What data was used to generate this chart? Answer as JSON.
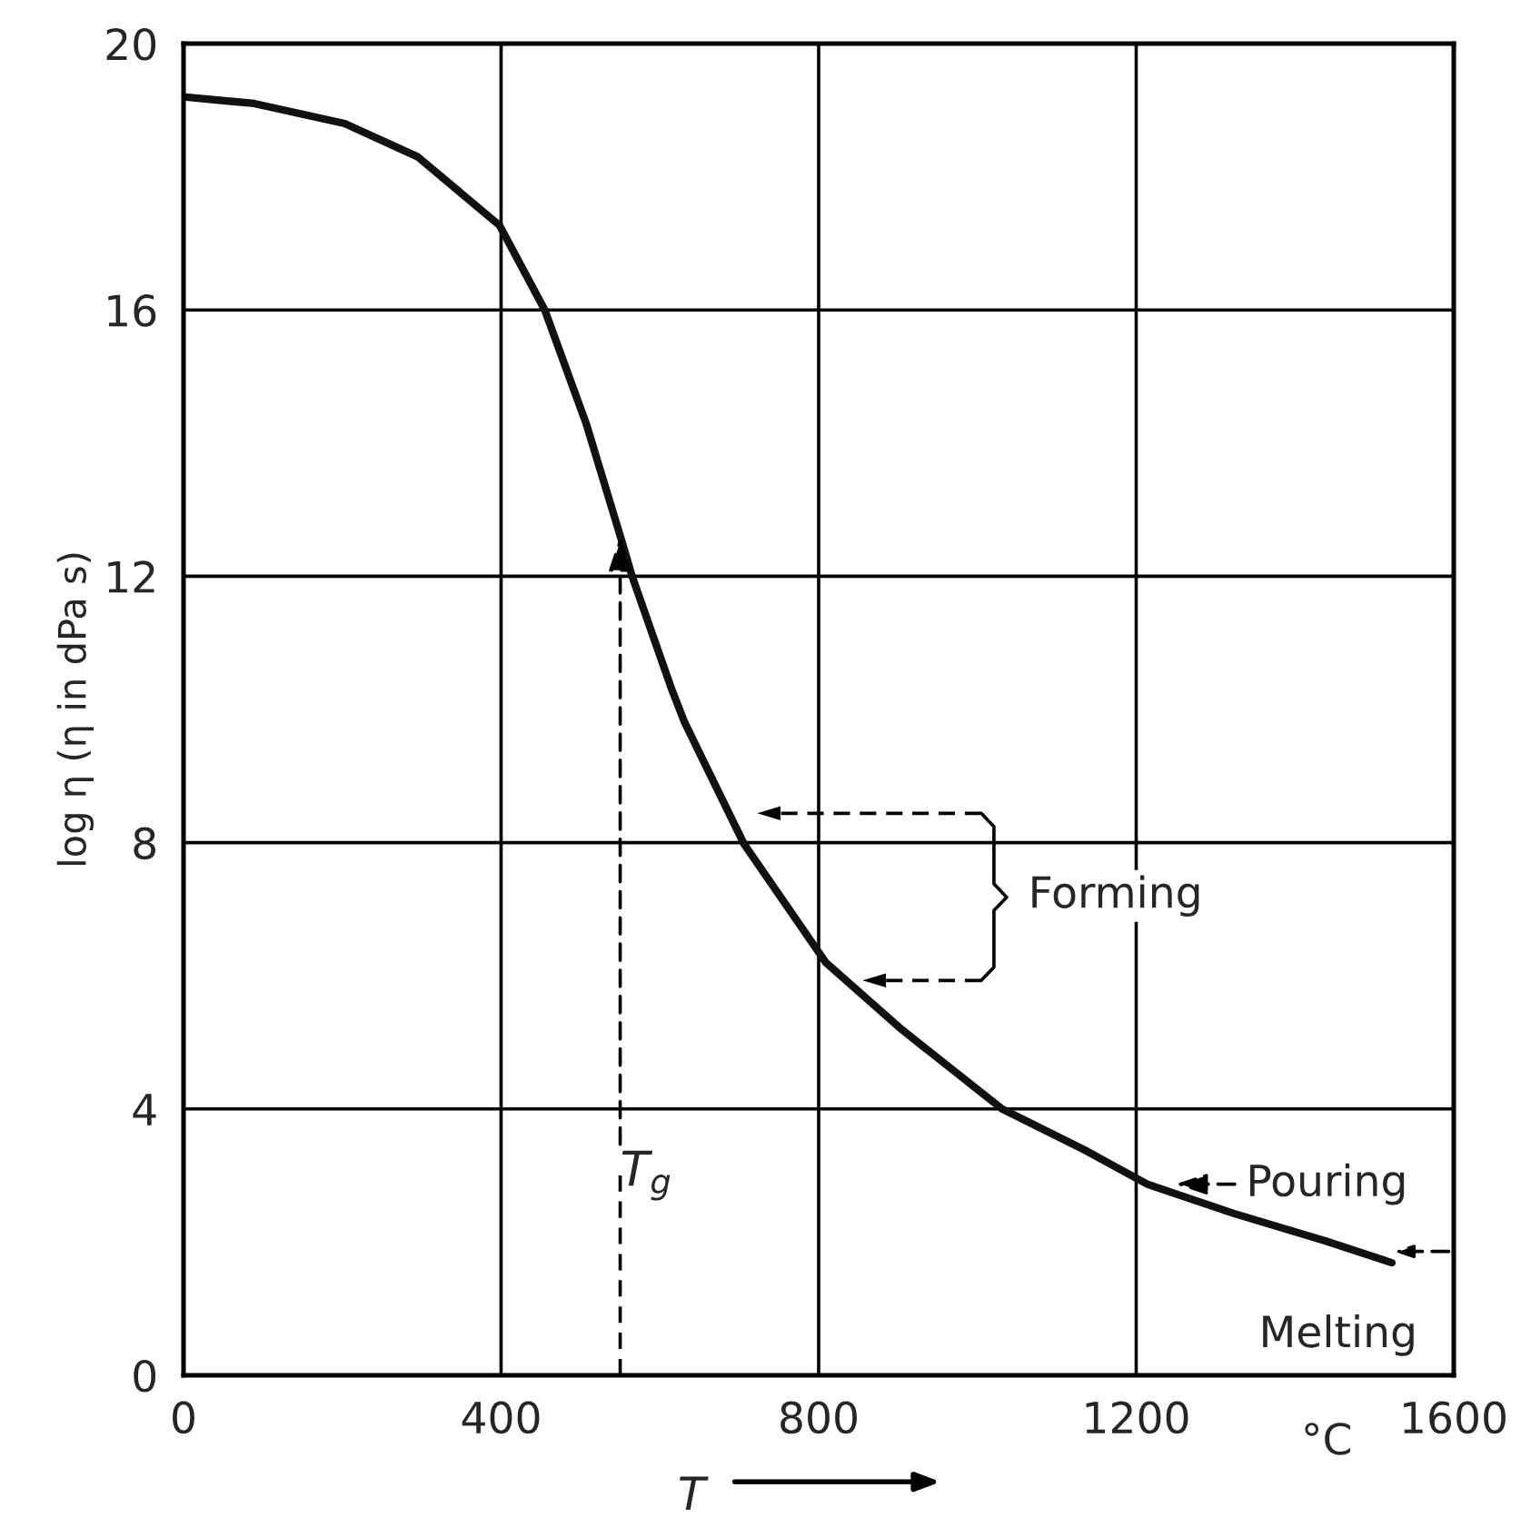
{
  "chart_data": {
    "type": "line",
    "xlabel": "T",
    "ylabel": "log η (η in dPa s)",
    "x": [
      0,
      89,
      203,
      295,
      398,
      455,
      507,
      551,
      565,
      615,
      631,
      706,
      809,
      905,
      1031,
      1134,
      1214,
      1323,
      1438,
      1522
    ],
    "series": [
      {
        "color": "#111111",
        "values": [
          19.2,
          19.1,
          18.8,
          18.3,
          17.27,
          16.0,
          14.3,
          12.57,
          12.0,
          10.3,
          9.81,
          7.98,
          6.2,
          5.19,
          4.0,
          3.39,
          2.87,
          2.43,
          2.02,
          1.69
        ]
      }
    ],
    "xlim": [
      0,
      1600
    ],
    "ylim": [
      0,
      20
    ],
    "xticks": [
      0,
      400,
      800,
      1200,
      1600
    ],
    "yticks": [
      0,
      4,
      8,
      12,
      16,
      20
    ],
    "grid": true,
    "legend": false,
    "marker": "none",
    "line_style": "solid",
    "annotations": [
      {
        "text": "T$_{g}$",
        "x": 550,
        "y": 12.6
      },
      "Forming",
      {
        "text": "Pouring",
        "x": 1243,
        "y": 2.87
      },
      {
        "text": "Melting",
        "x": 1518,
        "y": 1.86
      },
      "°C"
    ]
  }
}
